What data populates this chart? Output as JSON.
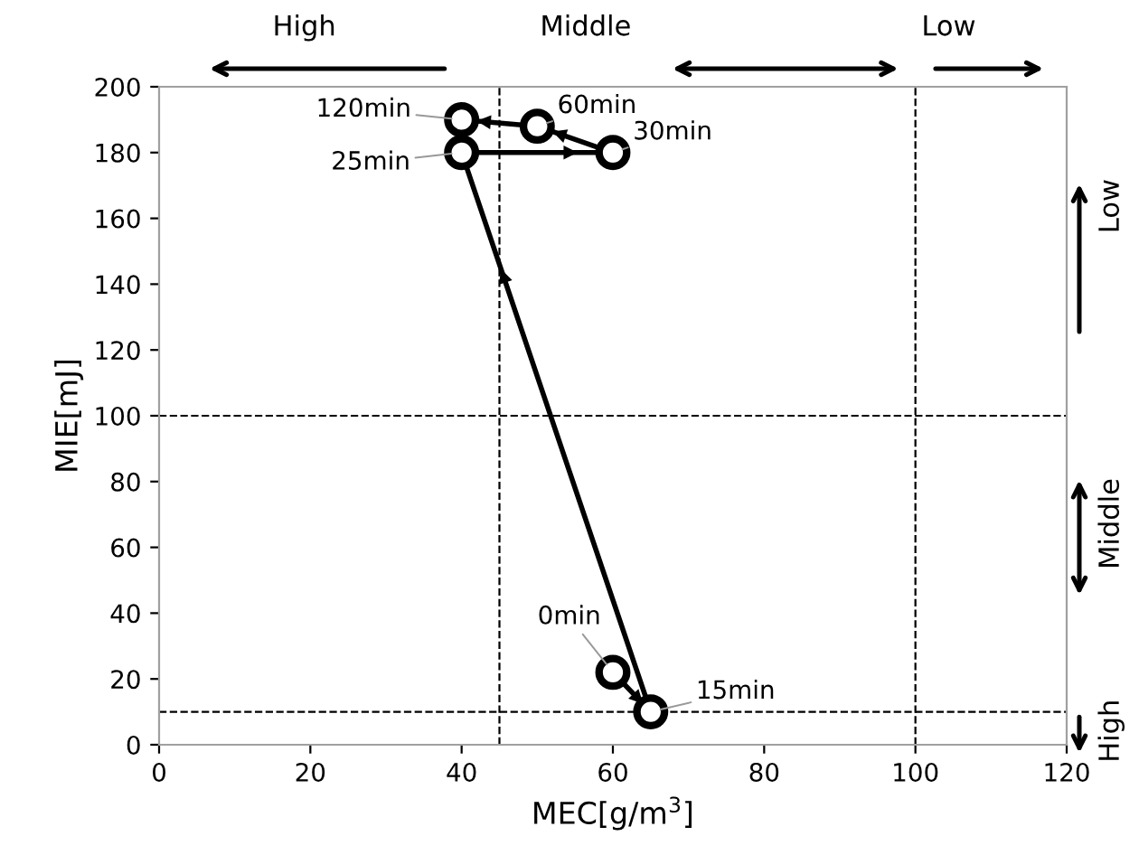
{
  "chart_data": {
    "type": "line",
    "xlabel": "MEC[g/m$^{3}$]",
    "ylabel": "MIE[mJ]",
    "x": [
      60,
      65,
      40,
      60,
      50,
      40
    ],
    "series": [
      {
        "color": "#000000",
        "values": [
          22,
          10,
          180,
          180,
          188,
          190
        ]
      }
    ],
    "marker": "circle",
    "line_style": "solid",
    "xlim": [
      0,
      120
    ],
    "xticks": [
      0,
      20,
      40,
      60,
      80,
      100,
      120
    ],
    "ylim": [
      0,
      200
    ],
    "yticks": [
      0,
      20,
      40,
      60,
      80,
      100,
      120,
      140,
      160,
      180,
      200
    ],
    "grid": false,
    "ref_lines": [
      {
        "axis": "x",
        "value": 45,
        "color": "#000000",
        "line_style": "dashed"
      },
      {
        "axis": "x",
        "value": 100,
        "color": "#000000",
        "line_style": "dashed"
      },
      {
        "axis": "y",
        "value": 100,
        "color": "#000000",
        "line_style": "dashed"
      },
      {
        "axis": "y",
        "value": 10,
        "color": "#000000",
        "line_style": "dashed"
      }
    ],
    "annotations": [
      {
        "text": "0min",
        "x": 60,
        "y": 22
      },
      {
        "text": "15min",
        "x": 65,
        "y": 10
      },
      {
        "text": "25min",
        "x": 40,
        "y": 180
      },
      {
        "text": "30min",
        "x": 60,
        "y": 180
      },
      {
        "text": "60min",
        "x": 50,
        "y": 188
      },
      {
        "text": "120min",
        "x": 40,
        "y": 190
      },
      "High",
      "Middle",
      "Low",
      "Low",
      "Middle",
      "High"
    ]
  }
}
